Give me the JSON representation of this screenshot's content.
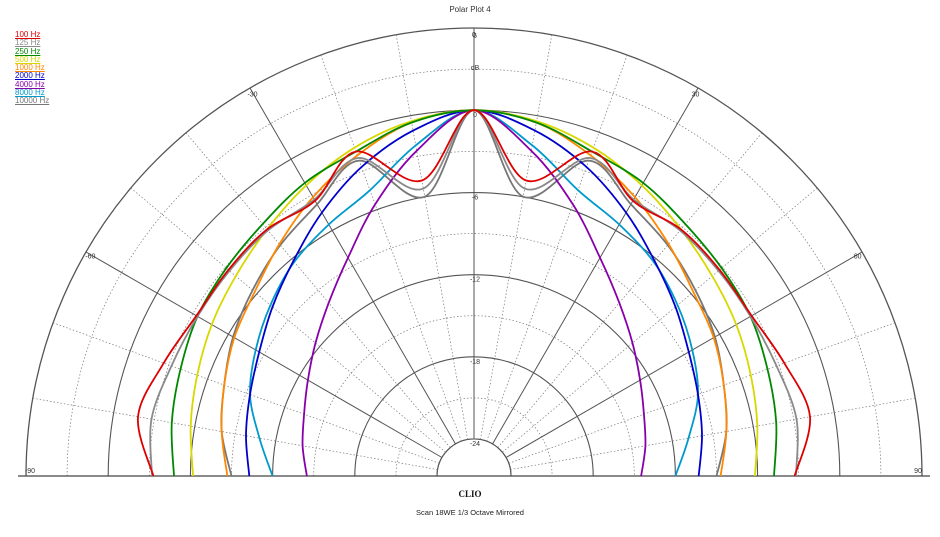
{
  "title": "Polar Plot 4",
  "brand": "CLIO",
  "footer": "Scan 18WE   1/3 Octave   Mirrored",
  "chart_data": {
    "type": "polar",
    "angle_range": [
      -90,
      90
    ],
    "angle_labels": [
      "-90",
      "-60",
      "-30",
      "0",
      "30",
      "60",
      "90"
    ],
    "radial_range_db": [
      -24,
      6
    ],
    "radial_labels": [
      "6",
      "dB",
      "0",
      "-6",
      "-12",
      "-18",
      "-24"
    ],
    "radial_rings_db": [
      6,
      3,
      0,
      -3,
      -6,
      -9,
      -12,
      -15,
      -18,
      -21,
      -24
    ],
    "angle_grid_step": 10,
    "legend_placement": "top-left",
    "series": [
      {
        "name": "100 Hz",
        "color": "#dd0000",
        "angles": [
          0,
          10,
          20,
          30,
          40,
          50,
          60,
          70,
          80,
          90
        ],
        "values": [
          0,
          -4.8,
          -1.5,
          -3.5,
          -3.2,
          -3.3,
          -3.3,
          -2.6,
          -1.8,
          -3.3
        ]
      },
      {
        "name": "125 Hz",
        "color": "#8a8a8a",
        "angles": [
          0,
          10,
          20,
          30,
          40,
          50,
          60,
          70,
          80,
          90
        ],
        "values": [
          0,
          -5.4,
          -2.0,
          -3.4,
          -3.3,
          -3.4,
          -3.4,
          -3.2,
          -2.8,
          -3.2
        ]
      },
      {
        "name": "250 Hz",
        "color": "#008800",
        "angles": [
          0,
          10,
          20,
          30,
          40,
          50,
          60,
          70,
          80,
          90
        ],
        "values": [
          0,
          -0.5,
          -1.5,
          -2.0,
          -2.7,
          -3.1,
          -3.4,
          -3.9,
          -4.3,
          -4.8
        ]
      },
      {
        "name": "500 Hz",
        "color": "#d8d800",
        "angles": [
          0,
          10,
          20,
          30,
          40,
          50,
          60,
          70,
          80,
          90
        ],
        "values": [
          0,
          -0.4,
          -1.2,
          -2.2,
          -3.2,
          -4.0,
          -4.6,
          -5.2,
          -5.7,
          -6.2
        ]
      },
      {
        "name": "1000 Hz",
        "color": "#ff8800",
        "angles": [
          0,
          10,
          20,
          30,
          40,
          50,
          60,
          70,
          80,
          90
        ],
        "values": [
          0,
          -0.5,
          -1.8,
          -3.2,
          -4.6,
          -5.8,
          -6.5,
          -7.3,
          -8.0,
          -8.7
        ]
      },
      {
        "name": "2000 Hz",
        "color": "#0000cc",
        "angles": [
          0,
          10,
          20,
          30,
          40,
          50,
          60,
          70,
          80,
          90
        ],
        "values": [
          0,
          -1.1,
          -2.7,
          -4.5,
          -6.2,
          -7.5,
          -8.6,
          -9.3,
          -9.8,
          -10.3
        ]
      },
      {
        "name": "4000 Hz",
        "color": "#8800aa",
        "angles": [
          0,
          10,
          20,
          30,
          40,
          50,
          60,
          70,
          80,
          90
        ],
        "values": [
          0,
          -2.6,
          -5.6,
          -8.3,
          -10.2,
          -11.6,
          -12.7,
          -13.5,
          -14.0,
          -14.5
        ]
      },
      {
        "name": "8000 Hz",
        "color": "#0099cc",
        "angles": [
          0,
          10,
          20,
          30,
          40,
          50,
          60,
          70,
          80,
          90
        ],
        "values": [
          0,
          -2.2,
          -4.5,
          -5.5,
          -6.3,
          -7.3,
          -8.3,
          -9.3,
          -10.8,
          -12.0
        ]
      },
      {
        "name": "10000 Hz",
        "color": "#777777",
        "angles": [
          0,
          10,
          20,
          30,
          40,
          50,
          60,
          70,
          80,
          90
        ],
        "values": [
          0,
          -6.0,
          -2.2,
          -3.8,
          -4.7,
          -5.6,
          -6.4,
          -7.3,
          -8.0,
          -9.0
        ]
      }
    ]
  }
}
